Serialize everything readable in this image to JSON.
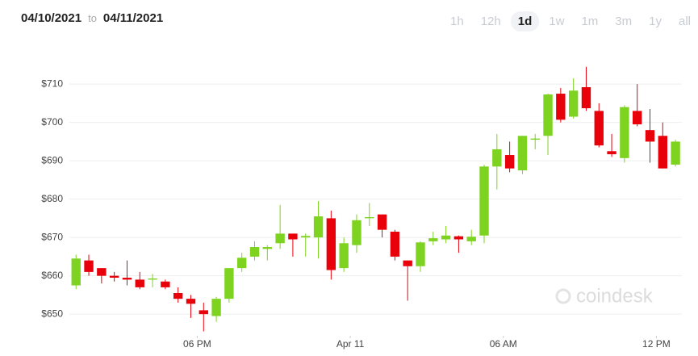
{
  "header": {
    "from": "04/10/2021",
    "separator": "to",
    "to": "04/11/2021"
  },
  "range_buttons": [
    "1h",
    "12h",
    "1d",
    "1w",
    "1m",
    "3m",
    "1y",
    "all"
  ],
  "active_range_index": 2,
  "chart_data": {
    "type": "candlestick",
    "watermark": "coindesk",
    "up_color": "#7ed321",
    "down_color": "#e8000b",
    "grid": true,
    "x": [
      13.25,
      13.75,
      14.25,
      14.75,
      15.25,
      15.75,
      16.25,
      16.75,
      17.25,
      17.75,
      18.25,
      18.75,
      19.25,
      19.75,
      20.25,
      20.75,
      21.25,
      21.75,
      22.25,
      22.75,
      23.25,
      23.75,
      24.25,
      24.75,
      25.25,
      25.75,
      26.25,
      26.75,
      27.25,
      27.75,
      28.25,
      28.75,
      29.25,
      29.75,
      30.25,
      30.75,
      31.25,
      31.75,
      32.25,
      32.75,
      33.25,
      33.75,
      34.25,
      34.75,
      35.25,
      35.75,
      36.25,
      36.75
    ],
    "open": [
      657.5,
      664,
      662,
      660,
      659.5,
      659,
      659,
      658.5,
      655.5,
      654,
      651,
      649.5,
      654,
      662,
      665,
      667,
      668.5,
      671,
      670,
      670,
      675,
      662,
      668,
      675,
      676,
      671.5,
      664,
      662.5,
      669,
      669.5,
      670.3,
      669,
      670.5,
      688.5,
      691.5,
      687.5,
      695.5,
      696.5,
      707.5,
      701.5,
      709.2,
      703,
      692.5,
      690.7,
      703,
      698,
      696.5,
      689
    ],
    "high": [
      665.5,
      665.5,
      662,
      661,
      664,
      661,
      660.5,
      659,
      657,
      655,
      653,
      654.5,
      662,
      666,
      669,
      668,
      678.5,
      671,
      671,
      679.5,
      677,
      670,
      676,
      679,
      676,
      672,
      664,
      669,
      671.5,
      673,
      670.5,
      672,
      689,
      697,
      695,
      696.5,
      697,
      707.5,
      709,
      711.5,
      714.5,
      705,
      697,
      704.5,
      710,
      703.5,
      700,
      695.5
    ],
    "low": [
      656.5,
      660,
      658,
      658.5,
      657.5,
      656.5,
      657,
      656.5,
      653,
      649,
      645.5,
      648,
      653,
      661,
      664,
      664,
      667,
      665,
      665,
      664.5,
      659,
      661,
      666,
      673,
      670,
      664,
      653.5,
      661,
      668,
      668.5,
      666,
      668,
      668.5,
      682.5,
      687,
      686.5,
      693,
      691.5,
      700,
      701,
      703,
      693.5,
      691,
      689.5,
      699,
      689.5,
      688,
      688.5
    ],
    "close": [
      664.5,
      661,
      660,
      659.5,
      659,
      657,
      659.3,
      657,
      654,
      652.7,
      650,
      654,
      662,
      664.7,
      667.5,
      667.5,
      671,
      669.5,
      670.4,
      675.5,
      661.5,
      668.5,
      674.5,
      675.3,
      672,
      665,
      662.5,
      668.7,
      669.8,
      670.5,
      669.5,
      670.2,
      688.5,
      693,
      688,
      696.5,
      695.8,
      707.3,
      700.7,
      708.3,
      703.7,
      694,
      691.7,
      704,
      699.5,
      695,
      688,
      695
    ],
    "xlim": [
      12.8,
      37
    ],
    "xticks": [
      {
        "value": 18,
        "label": "06 PM"
      },
      {
        "value": 24,
        "label": "Apr 11"
      },
      {
        "value": 30,
        "label": "06 AM"
      },
      {
        "value": 36,
        "label": "12 PM"
      }
    ],
    "ylim": [
      643.5,
      719.3
    ],
    "yticks": [
      {
        "value": 650,
        "label": "$650"
      },
      {
        "value": 660,
        "label": "$660"
      },
      {
        "value": 670,
        "label": "$670"
      },
      {
        "value": 680,
        "label": "$680"
      },
      {
        "value": 690,
        "label": "$690"
      },
      {
        "value": 700,
        "label": "$700"
      },
      {
        "value": 710,
        "label": "$710"
      }
    ]
  }
}
